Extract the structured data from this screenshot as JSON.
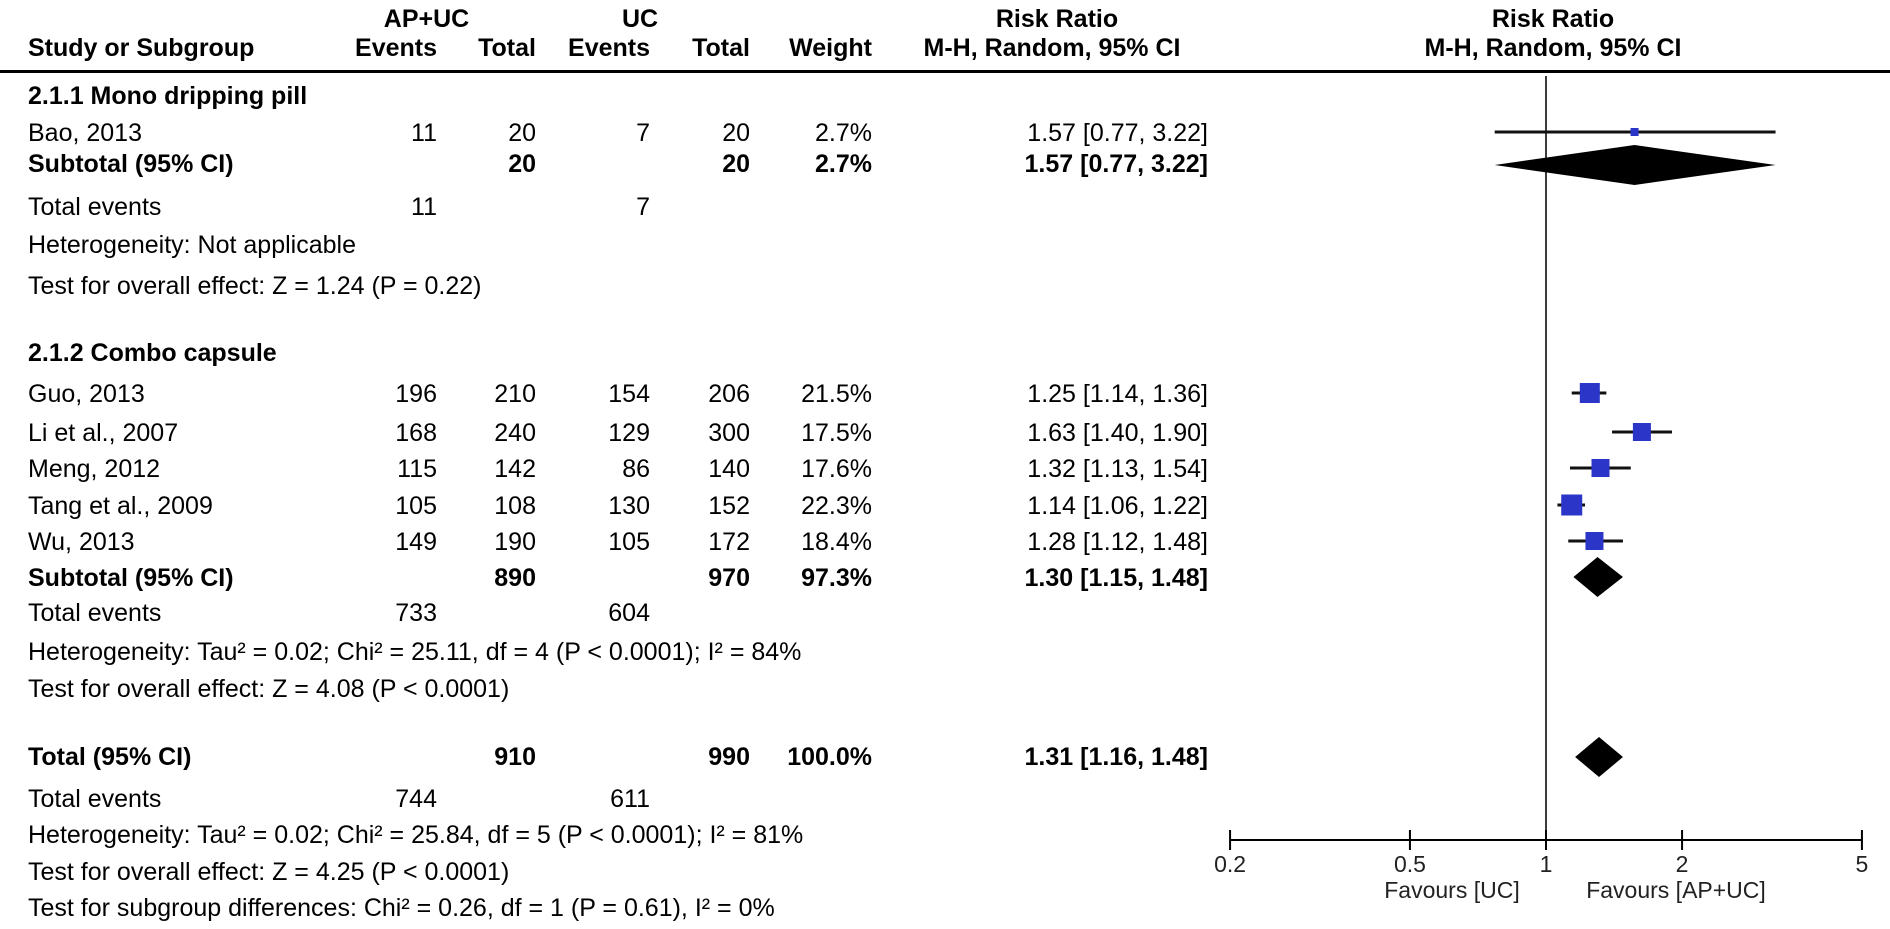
{
  "header": {
    "group1_label": "AP+UC",
    "group2_label": "UC",
    "risk_ratio_label": "Risk Ratio",
    "method_label": "M-H, Random, 95% CI",
    "study_col": "Study or Subgroup",
    "events_col": "Events",
    "total_col": "Total",
    "weight_col": "Weight"
  },
  "section1": {
    "title": "2.1.1 Mono dripping pill",
    "bao": {
      "study": "Bao, 2013",
      "e1": "11",
      "t1": "20",
      "e2": "7",
      "t2": "20",
      "w": "2.7%",
      "ci": "1.57 [0.77, 3.22]"
    },
    "subtotal": {
      "label": "Subtotal (95% CI)",
      "t1": "20",
      "t2": "20",
      "w": "2.7%",
      "ci": "1.57 [0.77, 3.22]"
    },
    "total_events": {
      "label": "Total events",
      "e1": "11",
      "e2": "7"
    },
    "heterogeneity": "Heterogeneity: Not applicable",
    "overall_effect": "Test for overall effect: Z = 1.24 (P = 0.22)"
  },
  "section2": {
    "title": "2.1.2 Combo capsule",
    "guo": {
      "study": "Guo, 2013",
      "e1": "196",
      "t1": "210",
      "e2": "154",
      "t2": "206",
      "w": "21.5%",
      "ci": "1.25 [1.14, 1.36]"
    },
    "li": {
      "study": "Li et al., 2007",
      "e1": "168",
      "t1": "240",
      "e2": "129",
      "t2": "300",
      "w": "17.5%",
      "ci": "1.63 [1.40, 1.90]"
    },
    "meng": {
      "study": "Meng, 2012",
      "e1": "115",
      "t1": "142",
      "e2": "86",
      "t2": "140",
      "w": "17.6%",
      "ci": "1.32 [1.13, 1.54]"
    },
    "tang": {
      "study": "Tang et al., 2009",
      "e1": "105",
      "t1": "108",
      "e2": "130",
      "t2": "152",
      "w": "22.3%",
      "ci": "1.14 [1.06, 1.22]"
    },
    "wu": {
      "study": "Wu, 2013",
      "e1": "149",
      "t1": "190",
      "e2": "105",
      "t2": "172",
      "w": "18.4%",
      "ci": "1.28 [1.12, 1.48]"
    },
    "subtotal": {
      "label": "Subtotal (95% CI)",
      "t1": "890",
      "t2": "970",
      "w": "97.3%",
      "ci": "1.30 [1.15, 1.48]"
    },
    "total_events": {
      "label": "Total events",
      "e1": "733",
      "e2": "604"
    },
    "heterogeneity": "Heterogeneity: Tau² = 0.02; Chi² = 25.11, df = 4 (P < 0.0001); I² = 84%",
    "overall_effect": "Test for overall effect: Z = 4.08 (P < 0.0001)"
  },
  "totals": {
    "row": {
      "label": "Total (95% CI)",
      "t1": "910",
      "t2": "990",
      "w": "100.0%",
      "ci": "1.31 [1.16, 1.48]"
    },
    "total_events": {
      "label": "Total events",
      "e1": "744",
      "e2": "611"
    },
    "heterogeneity": "Heterogeneity: Tau² = 0.02; Chi² = 25.84, df = 5 (P < 0.0001); I² = 81%",
    "overall_effect": "Test for overall effect: Z = 4.25 (P < 0.0001)",
    "subgroup_diff": "Test for subgroup differences: Chi² = 0.26, df = 1 (P = 0.61), I² = 0%"
  },
  "chart_data": {
    "type": "scatter",
    "subtype": "forest-plot",
    "title": "Risk Ratio",
    "method": "M-H, Random, 95% CI",
    "x_scale": "log",
    "axis": {
      "min": 0.2,
      "max": 5,
      "null_value": 1,
      "ticks": [
        "0.2",
        "0.5",
        "1",
        "2",
        "5"
      ],
      "tick_values": [
        0.2,
        0.5,
        1,
        2,
        5
      ]
    },
    "favours_left": "Favours [UC]",
    "favours_right": "Favours [AP+UC]",
    "marker_color": "#2b35c8",
    "diamond_color": "#000000",
    "studies": [
      {
        "name": "Bao, 2013",
        "est": 1.57,
        "lo": 0.77,
        "hi": 3.22,
        "weight_pct": 2.7
      },
      {
        "name": "Guo, 2013",
        "est": 1.25,
        "lo": 1.14,
        "hi": 1.36,
        "weight_pct": 21.5
      },
      {
        "name": "Li et al., 2007",
        "est": 1.63,
        "lo": 1.4,
        "hi": 1.9,
        "weight_pct": 17.5
      },
      {
        "name": "Meng, 2012",
        "est": 1.32,
        "lo": 1.13,
        "hi": 1.54,
        "weight_pct": 17.6
      },
      {
        "name": "Tang et al., 2009",
        "est": 1.14,
        "lo": 1.06,
        "hi": 1.22,
        "weight_pct": 22.3
      },
      {
        "name": "Wu, 2013",
        "est": 1.28,
        "lo": 1.12,
        "hi": 1.48,
        "weight_pct": 18.4
      }
    ],
    "diamonds": [
      {
        "name": "Subtotal 2.1.1 Mono dripping pill",
        "est": 1.57,
        "lo": 0.77,
        "hi": 3.22
      },
      {
        "name": "Subtotal 2.1.2 Combo capsule",
        "est": 1.3,
        "lo": 1.15,
        "hi": 1.48
      },
      {
        "name": "Total",
        "est": 1.31,
        "lo": 1.16,
        "hi": 1.48
      }
    ]
  }
}
